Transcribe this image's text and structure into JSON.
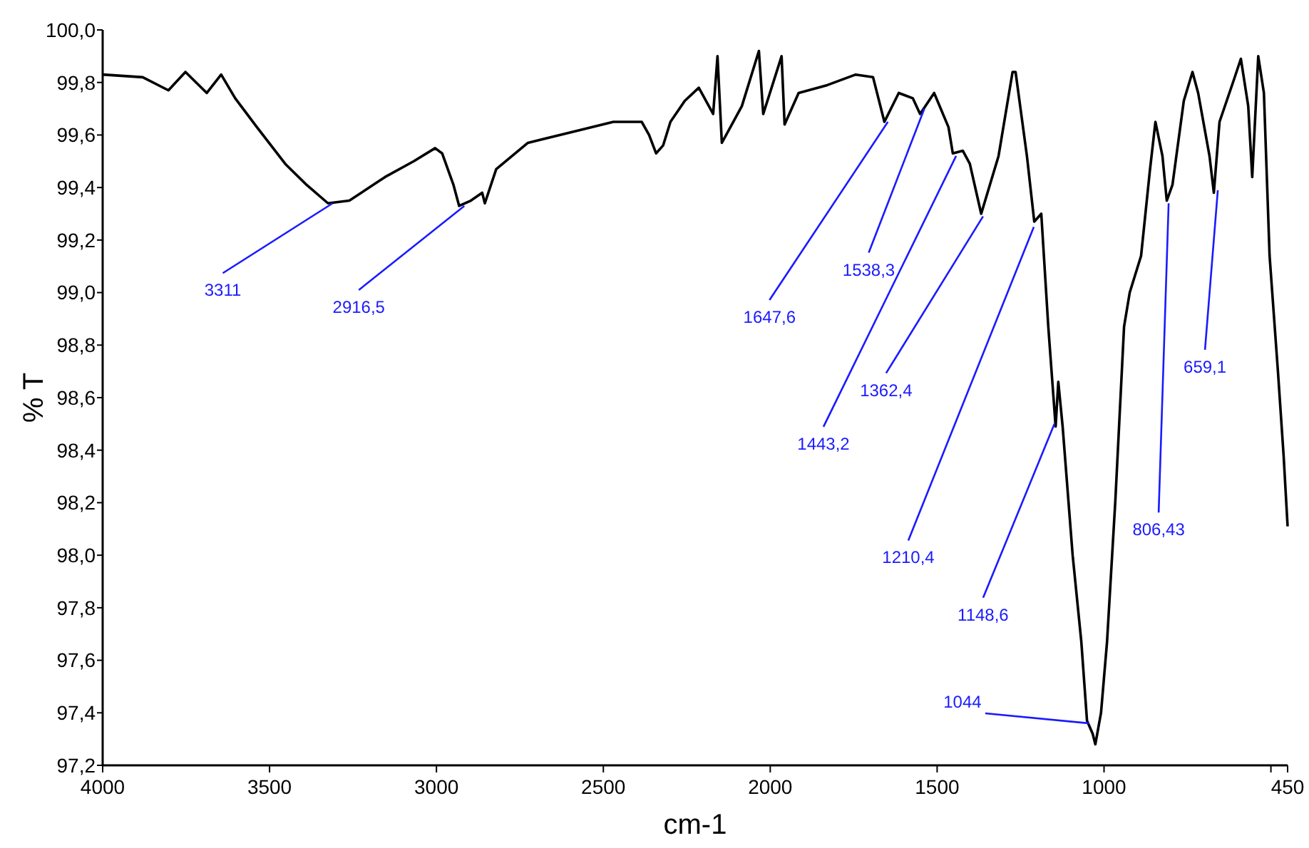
{
  "chart_data": {
    "type": "line",
    "xlabel": "cm-1",
    "ylabel": "% T",
    "grid": false,
    "marker": "none",
    "line_style": "solid",
    "xlim": [
      4000,
      450
    ],
    "xticks": [
      {
        "value": 4000,
        "label": "4000"
      },
      {
        "value": 3500,
        "label": "3500"
      },
      {
        "value": 3000,
        "label": "3000"
      },
      {
        "value": 2500,
        "label": "2500"
      },
      {
        "value": 2000,
        "label": "2000"
      },
      {
        "value": 1500,
        "label": "1500"
      },
      {
        "value": 1000,
        "label": "1000"
      },
      {
        "value": 500,
        "label": null
      },
      {
        "value": 450,
        "label": "450"
      }
    ],
    "ylim": [
      97.2,
      100.0
    ],
    "yticks": [
      {
        "value": 97.2,
        "label": "97,2"
      },
      {
        "value": 97.4,
        "label": "97,4"
      },
      {
        "value": 97.6,
        "label": "97,6"
      },
      {
        "value": 97.8,
        "label": "97,8"
      },
      {
        "value": 98.0,
        "label": "98,0"
      },
      {
        "value": 98.2,
        "label": "98,2"
      },
      {
        "value": 98.4,
        "label": "98,4"
      },
      {
        "value": 98.6,
        "label": "98,6"
      },
      {
        "value": 98.8,
        "label": "98,8"
      },
      {
        "value": 99.0,
        "label": "99,0"
      },
      {
        "value": 99.2,
        "label": "99,2"
      },
      {
        "value": 99.4,
        "label": "99,4"
      },
      {
        "value": 99.6,
        "label": "99,6"
      },
      {
        "value": 99.8,
        "label": "99,8"
      },
      {
        "value": 100.0,
        "label": "100,0"
      }
    ],
    "series": [
      {
        "color": "#000000",
        "x": [
          4000,
          3880,
          3803,
          3752,
          3688,
          3645,
          3603,
          3538,
          3453,
          3389,
          3325,
          3261,
          3154,
          3068,
          3004,
          2983,
          2949,
          2932,
          2897,
          2863,
          2855,
          2821,
          2726,
          2598,
          2470,
          2385,
          2363,
          2342,
          2321,
          2299,
          2256,
          2214,
          2171,
          2158,
          2145,
          2085,
          2034,
          2021,
          1966,
          1957,
          1915,
          1829,
          1744,
          1692,
          1658,
          1615,
          1573,
          1551,
          1509,
          1466,
          1453,
          1423,
          1402,
          1368,
          1316,
          1274,
          1265,
          1231,
          1209,
          1188,
          1167,
          1145,
          1137,
          1124,
          1094,
          1068,
          1051,
          1034,
          1026,
          1009,
          991,
          966,
          940,
          923,
          889,
          863,
          846,
          825,
          812,
          795,
          761,
          735,
          718,
          684,
          671,
          654,
          611,
          590,
          568,
          556,
          538,
          521,
          504,
          479,
          462,
          450
        ],
        "values": [
          99.83,
          99.82,
          99.77,
          99.84,
          99.76,
          99.83,
          99.74,
          99.63,
          99.49,
          99.41,
          99.34,
          99.35,
          99.44,
          99.5,
          99.55,
          99.53,
          99.41,
          99.33,
          99.35,
          99.38,
          99.34,
          99.47,
          99.57,
          99.61,
          99.65,
          99.65,
          99.6,
          99.53,
          99.56,
          99.65,
          99.73,
          99.78,
          99.68,
          99.9,
          99.57,
          99.71,
          99.92,
          99.68,
          99.9,
          99.64,
          99.76,
          99.79,
          99.83,
          99.82,
          99.65,
          99.76,
          99.74,
          99.68,
          99.76,
          99.63,
          99.53,
          99.54,
          99.49,
          99.3,
          99.52,
          99.84,
          99.84,
          99.52,
          99.27,
          99.3,
          98.87,
          98.49,
          98.66,
          98.49,
          98.0,
          97.67,
          97.37,
          97.32,
          97.28,
          97.4,
          97.67,
          98.21,
          98.87,
          99.0,
          99.14,
          99.46,
          99.65,
          99.52,
          99.35,
          99.41,
          99.73,
          99.84,
          99.76,
          99.52,
          99.38,
          99.65,
          99.81,
          99.89,
          99.71,
          99.44,
          99.9,
          99.76,
          99.14,
          98.7,
          98.38,
          98.11
        ]
      }
    ],
    "annotations": [
      {
        "text": "3311",
        "x": 3311,
        "y": 99.34
      },
      {
        "text": "2916,5",
        "x": 2916.5,
        "y": 99.33
      },
      {
        "text": "1647,6",
        "x": 1647.6,
        "y": 99.65
      },
      {
        "text": "1538,3",
        "x": 1538.3,
        "y": 99.7
      },
      {
        "text": "1443,2",
        "x": 1443.2,
        "y": 99.52
      },
      {
        "text": "1362,4",
        "x": 1362.4,
        "y": 99.29
      },
      {
        "text": "1210,4",
        "x": 1210.4,
        "y": 99.25
      },
      {
        "text": "1148,6",
        "x": 1148.6,
        "y": 98.5
      },
      {
        "text": "1044",
        "x": 1044,
        "y": 97.36
      },
      {
        "text": "806,43",
        "x": 806.43,
        "y": 99.34
      },
      {
        "text": "659,1",
        "x": 659.1,
        "y": 99.39
      }
    ]
  }
}
